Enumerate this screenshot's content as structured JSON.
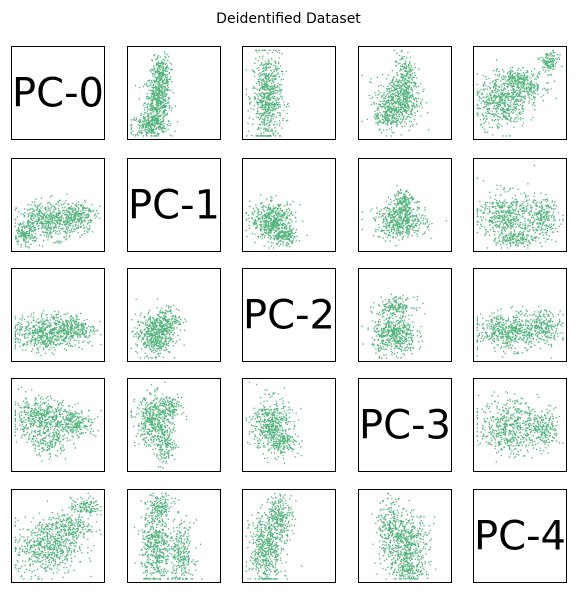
{
  "chart_data": {
    "type": "scatter",
    "title": "Deidentified Dataset",
    "layout": "pairplot-grid",
    "grid": false,
    "axes_ticks": false,
    "point_color": "#50b47b",
    "diagonal_labels": [
      "PC-0",
      "PC-1",
      "PC-2",
      "PC-3",
      "PC-4"
    ],
    "panels": [
      {
        "row": 0,
        "col": 1,
        "x_var": "PC-1",
        "y_var": "PC-0",
        "clusters": [
          {
            "cx": 0.32,
            "cy": 0.4,
            "sx": 0.07,
            "sy": 0.16,
            "n": 520
          },
          {
            "cx": 0.22,
            "cy": 0.14,
            "sx": 0.1,
            "sy": 0.06,
            "n": 220
          },
          {
            "cx": 0.36,
            "cy": 0.72,
            "sx": 0.05,
            "sy": 0.1,
            "n": 180
          }
        ]
      },
      {
        "row": 0,
        "col": 2,
        "x_var": "PC-2",
        "y_var": "PC-0",
        "clusters": [
          {
            "cx": 0.26,
            "cy": 0.45,
            "sx": 0.08,
            "sy": 0.24,
            "n": 650
          }
        ]
      },
      {
        "row": 0,
        "col": 3,
        "x_var": "PC-3",
        "y_var": "PC-0",
        "clusters": [
          {
            "cx": 0.42,
            "cy": 0.4,
            "sx": 0.12,
            "sy": 0.14,
            "n": 480
          },
          {
            "cx": 0.5,
            "cy": 0.66,
            "sx": 0.06,
            "sy": 0.14,
            "n": 220
          },
          {
            "cx": 0.3,
            "cy": 0.25,
            "sx": 0.07,
            "sy": 0.07,
            "n": 120
          }
        ]
      },
      {
        "row": 0,
        "col": 4,
        "x_var": "PC-4",
        "y_var": "PC-0",
        "clusters": [
          {
            "cx": 0.3,
            "cy": 0.4,
            "sx": 0.14,
            "sy": 0.14,
            "n": 520
          },
          {
            "cx": 0.58,
            "cy": 0.58,
            "sx": 0.1,
            "sy": 0.08,
            "n": 200
          },
          {
            "cx": 0.82,
            "cy": 0.84,
            "sx": 0.05,
            "sy": 0.06,
            "n": 120
          },
          {
            "cx": 0.45,
            "cy": 0.66,
            "sx": 0.08,
            "sy": 0.05,
            "n": 120
          }
        ]
      },
      {
        "row": 1,
        "col": 0,
        "x_var": "PC-0",
        "y_var": "PC-1",
        "clusters": [
          {
            "cx": 0.4,
            "cy": 0.33,
            "sx": 0.17,
            "sy": 0.1,
            "n": 520
          },
          {
            "cx": 0.72,
            "cy": 0.38,
            "sx": 0.1,
            "sy": 0.08,
            "n": 220
          },
          {
            "cx": 0.12,
            "cy": 0.16,
            "sx": 0.06,
            "sy": 0.05,
            "n": 120
          }
        ]
      },
      {
        "row": 1,
        "col": 2,
        "x_var": "PC-2",
        "y_var": "PC-1",
        "clusters": [
          {
            "cx": 0.32,
            "cy": 0.33,
            "sx": 0.12,
            "sy": 0.1,
            "n": 500
          },
          {
            "cx": 0.45,
            "cy": 0.15,
            "sx": 0.07,
            "sy": 0.05,
            "n": 150
          }
        ]
      },
      {
        "row": 1,
        "col": 3,
        "x_var": "PC-3",
        "y_var": "PC-1",
        "clusters": [
          {
            "cx": 0.45,
            "cy": 0.32,
            "sx": 0.14,
            "sy": 0.09,
            "n": 480
          },
          {
            "cx": 0.48,
            "cy": 0.55,
            "sx": 0.06,
            "sy": 0.07,
            "n": 140
          }
        ]
      },
      {
        "row": 1,
        "col": 4,
        "x_var": "PC-4",
        "y_var": "PC-1",
        "clusters": [
          {
            "cx": 0.35,
            "cy": 0.38,
            "sx": 0.16,
            "sy": 0.13,
            "n": 480
          },
          {
            "cx": 0.75,
            "cy": 0.35,
            "sx": 0.09,
            "sy": 0.11,
            "n": 220
          },
          {
            "cx": 0.45,
            "cy": 0.13,
            "sx": 0.1,
            "sy": 0.04,
            "n": 140
          }
        ]
      },
      {
        "row": 2,
        "col": 0,
        "x_var": "PC-0",
        "y_var": "PC-2",
        "clusters": [
          {
            "cx": 0.36,
            "cy": 0.3,
            "sx": 0.17,
            "sy": 0.1,
            "n": 560
          },
          {
            "cx": 0.7,
            "cy": 0.35,
            "sx": 0.11,
            "sy": 0.08,
            "n": 220
          }
        ]
      },
      {
        "row": 2,
        "col": 1,
        "x_var": "PC-1",
        "y_var": "PC-2",
        "clusters": [
          {
            "cx": 0.28,
            "cy": 0.28,
            "sx": 0.1,
            "sy": 0.11,
            "n": 480
          },
          {
            "cx": 0.45,
            "cy": 0.45,
            "sx": 0.07,
            "sy": 0.07,
            "n": 150
          }
        ]
      },
      {
        "row": 2,
        "col": 3,
        "x_var": "PC-3",
        "y_var": "PC-2",
        "clusters": [
          {
            "cx": 0.38,
            "cy": 0.28,
            "sx": 0.12,
            "sy": 0.11,
            "n": 480
          },
          {
            "cx": 0.4,
            "cy": 0.6,
            "sx": 0.1,
            "sy": 0.05,
            "n": 160
          }
        ]
      },
      {
        "row": 2,
        "col": 4,
        "x_var": "PC-4",
        "y_var": "PC-2",
        "clusters": [
          {
            "cx": 0.38,
            "cy": 0.32,
            "sx": 0.18,
            "sy": 0.1,
            "n": 520
          },
          {
            "cx": 0.78,
            "cy": 0.38,
            "sx": 0.09,
            "sy": 0.09,
            "n": 200
          }
        ]
      },
      {
        "row": 3,
        "col": 0,
        "x_var": "PC-0",
        "y_var": "PC-3",
        "clusters": [
          {
            "cx": 0.3,
            "cy": 0.58,
            "sx": 0.16,
            "sy": 0.11,
            "n": 460
          },
          {
            "cx": 0.68,
            "cy": 0.52,
            "sx": 0.12,
            "sy": 0.08,
            "n": 240
          },
          {
            "cx": 0.4,
            "cy": 0.3,
            "sx": 0.1,
            "sy": 0.07,
            "n": 140
          }
        ]
      },
      {
        "row": 3,
        "col": 1,
        "x_var": "PC-1",
        "y_var": "PC-3",
        "clusters": [
          {
            "cx": 0.28,
            "cy": 0.55,
            "sx": 0.1,
            "sy": 0.14,
            "n": 420
          },
          {
            "cx": 0.4,
            "cy": 0.28,
            "sx": 0.06,
            "sy": 0.1,
            "n": 160
          },
          {
            "cx": 0.45,
            "cy": 0.7,
            "sx": 0.07,
            "sy": 0.06,
            "n": 120
          }
        ]
      },
      {
        "row": 3,
        "col": 2,
        "x_var": "PC-2",
        "y_var": "PC-3",
        "clusters": [
          {
            "cx": 0.3,
            "cy": 0.5,
            "sx": 0.1,
            "sy": 0.15,
            "n": 480
          },
          {
            "cx": 0.45,
            "cy": 0.3,
            "sx": 0.08,
            "sy": 0.06,
            "n": 120
          }
        ]
      },
      {
        "row": 3,
        "col": 4,
        "x_var": "PC-4",
        "y_var": "PC-3",
        "clusters": [
          {
            "cx": 0.38,
            "cy": 0.48,
            "sx": 0.16,
            "sy": 0.15,
            "n": 500
          },
          {
            "cx": 0.76,
            "cy": 0.45,
            "sx": 0.09,
            "sy": 0.11,
            "n": 200
          }
        ]
      },
      {
        "row": 4,
        "col": 0,
        "x_var": "PC-0",
        "y_var": "PC-4",
        "clusters": [
          {
            "cx": 0.38,
            "cy": 0.38,
            "sx": 0.17,
            "sy": 0.15,
            "n": 580
          },
          {
            "cx": 0.62,
            "cy": 0.6,
            "sx": 0.12,
            "sy": 0.08,
            "n": 200
          },
          {
            "cx": 0.8,
            "cy": 0.82,
            "sx": 0.08,
            "sy": 0.05,
            "n": 120
          }
        ]
      },
      {
        "row": 4,
        "col": 1,
        "x_var": "PC-1",
        "y_var": "PC-4",
        "clusters": [
          {
            "cx": 0.3,
            "cy": 0.4,
            "sx": 0.08,
            "sy": 0.22,
            "n": 480
          },
          {
            "cx": 0.58,
            "cy": 0.3,
            "sx": 0.07,
            "sy": 0.18,
            "n": 260
          },
          {
            "cx": 0.35,
            "cy": 0.82,
            "sx": 0.07,
            "sy": 0.07,
            "n": 120
          }
        ]
      },
      {
        "row": 4,
        "col": 2,
        "x_var": "PC-2",
        "y_var": "PC-4",
        "clusters": [
          {
            "cx": 0.25,
            "cy": 0.35,
            "sx": 0.09,
            "sy": 0.2,
            "n": 520
          },
          {
            "cx": 0.4,
            "cy": 0.72,
            "sx": 0.07,
            "sy": 0.12,
            "n": 240
          }
        ]
      },
      {
        "row": 4,
        "col": 3,
        "x_var": "PC-3",
        "y_var": "PC-4",
        "clusters": [
          {
            "cx": 0.5,
            "cy": 0.4,
            "sx": 0.13,
            "sy": 0.18,
            "n": 560
          },
          {
            "cx": 0.32,
            "cy": 0.62,
            "sx": 0.06,
            "sy": 0.14,
            "n": 160
          },
          {
            "cx": 0.55,
            "cy": 0.12,
            "sx": 0.08,
            "sy": 0.05,
            "n": 100
          }
        ]
      }
    ]
  }
}
